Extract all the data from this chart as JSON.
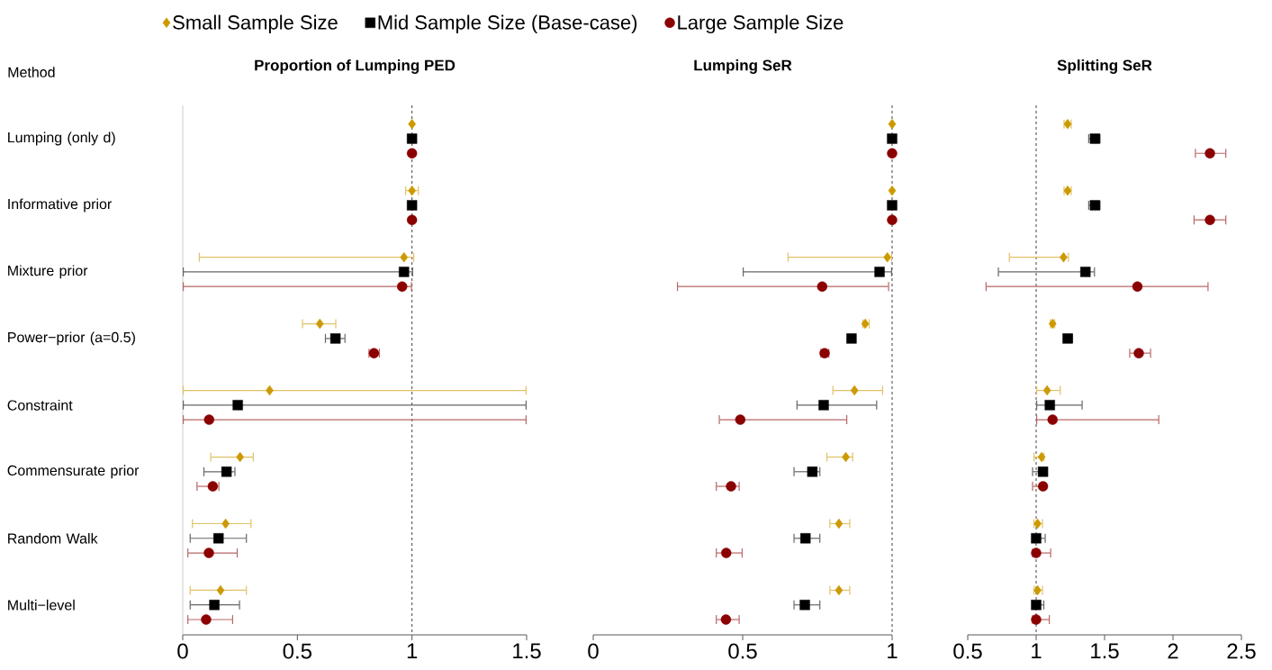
{
  "chart_data": [
    {
      "type": "scatter",
      "orientation": "horizontal",
      "title": "Proportion of Lumping PED",
      "annotations": [
        "Method"
      ],
      "legend": "top",
      "categories": [
        "Lumping (only d)",
        "Informative prior",
        "Mixture prior",
        "Power−prior (a=0.5)",
        "Constraint",
        "Commensurate prior",
        "Random Walk",
        "Multi−level"
      ],
      "xlim": [
        0,
        1.5
      ],
      "xticks": [
        0,
        0.5,
        1,
        1.5
      ],
      "ref_lines": [
        {
          "axis": "x",
          "value": 0,
          "color": "#cccccc",
          "line_style": "solid"
        },
        {
          "axis": "x",
          "value": 1,
          "color": "#444444",
          "line_style": "dashed"
        }
      ],
      "series": [
        {
          "name": "Small Sample Size",
          "color": "#cc9900",
          "marker": "diamond",
          "values": [
            1,
            1,
            0.965,
            0.598,
            0.379,
            0.25,
            0.187,
            0.165
          ],
          "errors": [
            null,
            [
              0.97,
              1.03
            ],
            [
              0.07,
              1.01
            ],
            [
              0.52,
              0.67
            ],
            [
              0,
              1.5
            ],
            [
              0.12,
              0.31
            ],
            [
              0.04,
              0.3
            ],
            [
              0.03,
              0.28
            ]
          ]
        },
        {
          "name": "Mid Sample Size (Base-case)",
          "color": "#000000",
          "marker": "square",
          "values": [
            1,
            1,
            0.965,
            0.666,
            0.24,
            0.191,
            0.156,
            0.138
          ],
          "errors": [
            null,
            null,
            [
              0,
              1.005
            ],
            [
              0.62,
              0.71
            ],
            [
              0,
              1.5
            ],
            [
              0.09,
              0.23
            ],
            [
              0.03,
              0.28
            ],
            [
              0.03,
              0.25
            ]
          ]
        },
        {
          "name": "Large Sample Size",
          "color": "#8b0000",
          "marker": "circle",
          "values": [
            1,
            1,
            0.957,
            0.834,
            0.115,
            0.131,
            0.114,
            0.102
          ],
          "errors": [
            null,
            null,
            [
              0,
              1.0
            ],
            [
              0.81,
              0.86
            ],
            [
              0,
              1.5
            ],
            [
              0.06,
              0.16
            ],
            [
              0.02,
              0.24
            ],
            [
              0.02,
              0.22
            ]
          ]
        }
      ]
    },
    {
      "type": "scatter",
      "orientation": "horizontal",
      "title": "Lumping SeR",
      "tick_labels": "x",
      "categories": [
        null,
        null,
        null,
        null,
        null,
        null,
        null,
        null
      ],
      "xlim": [
        0,
        1
      ],
      "xticks": [
        0,
        0.5,
        1
      ],
      "ref_lines": [
        {
          "axis": "x",
          "value": 1,
          "color": "#444444",
          "line_style": "dashed"
        }
      ],
      "series": [
        {
          "color": "#cc9900",
          "marker": "diamond",
          "values": [
            1,
            1,
            0.984,
            0.91,
            0.874,
            0.845,
            0.822,
            0.822
          ],
          "errors": [
            null,
            null,
            [
              0.65,
              1.0
            ],
            [
              0.9,
              0.925
            ],
            [
              0.8,
              0.97
            ],
            [
              0.78,
              0.87
            ],
            [
              0.79,
              0.86
            ],
            [
              0.79,
              0.86
            ]
          ]
        },
        {
          "color": "#000000",
          "marker": "square",
          "values": [
            1,
            1,
            0.958,
            0.864,
            0.771,
            0.733,
            0.71,
            0.708
          ],
          "errors": [
            null,
            null,
            [
              0.5,
              1.0
            ],
            [
              0.85,
              0.88
            ],
            [
              0.68,
              0.95
            ],
            [
              0.67,
              0.76
            ],
            [
              0.67,
              0.76
            ],
            [
              0.67,
              0.76
            ]
          ]
        },
        {
          "color": "#8b0000",
          "marker": "circle",
          "values": [
            1,
            1,
            0.766,
            0.774,
            0.492,
            0.461,
            0.445,
            0.444
          ],
          "errors": [
            null,
            null,
            [
              0.28,
              0.99
            ],
            [
              0.76,
              0.79
            ],
            [
              0.42,
              0.85
            ],
            [
              0.41,
              0.49
            ],
            [
              0.41,
              0.5
            ],
            [
              0.41,
              0.49
            ]
          ]
        }
      ]
    },
    {
      "type": "scatter",
      "orientation": "horizontal",
      "title": "Splitting SeR",
      "tick_labels": "x",
      "categories": [
        null,
        null,
        null,
        null,
        null,
        null,
        null,
        null
      ],
      "xlim": [
        0.5,
        2.5
      ],
      "xticks": [
        0.5,
        1,
        1.5,
        2,
        2.5
      ],
      "ref_lines": [
        {
          "axis": "x",
          "value": 1,
          "color": "#444444",
          "line_style": "dashed"
        }
      ],
      "series": [
        {
          "color": "#cc9900",
          "marker": "diamond",
          "values": [
            1.23,
            1.23,
            1.2,
            1.12,
            1.08,
            1.04,
            1.01,
            1.01
          ],
          "errors": [
            [
              1.2,
              1.26
            ],
            [
              1.2,
              1.26
            ],
            [
              0.8,
              1.24
            ],
            [
              1.1,
              1.14
            ],
            [
              1.0,
              1.18
            ],
            [
              0.98,
              1.06
            ],
            [
              0.98,
              1.05
            ],
            [
              0.98,
              1.05
            ]
          ]
        },
        {
          "color": "#000000",
          "marker": "square",
          "values": [
            1.43,
            1.43,
            1.36,
            1.23,
            1.1,
            1.05,
            1.0,
            1.0
          ],
          "errors": [
            [
              1.38,
              1.47
            ],
            [
              1.38,
              1.47
            ],
            [
              0.72,
              1.43
            ],
            [
              1.2,
              1.27
            ],
            [
              1.0,
              1.34
            ],
            [
              0.97,
              1.08
            ],
            [
              0.97,
              1.07
            ],
            [
              0.97,
              1.06
            ]
          ]
        },
        {
          "color": "#8b0000",
          "marker": "circle",
          "values": [
            2.27,
            2.27,
            1.74,
            1.75,
            1.12,
            1.05,
            1.0,
            1.0
          ],
          "errors": [
            [
              2.16,
              2.39
            ],
            [
              2.15,
              2.39
            ],
            [
              0.63,
              2.26
            ],
            [
              1.68,
              1.84
            ],
            [
              1.0,
              1.9
            ],
            [
              0.97,
              1.07
            ],
            [
              0.97,
              1.11
            ],
            [
              0.97,
              1.1
            ]
          ]
        }
      ]
    }
  ]
}
